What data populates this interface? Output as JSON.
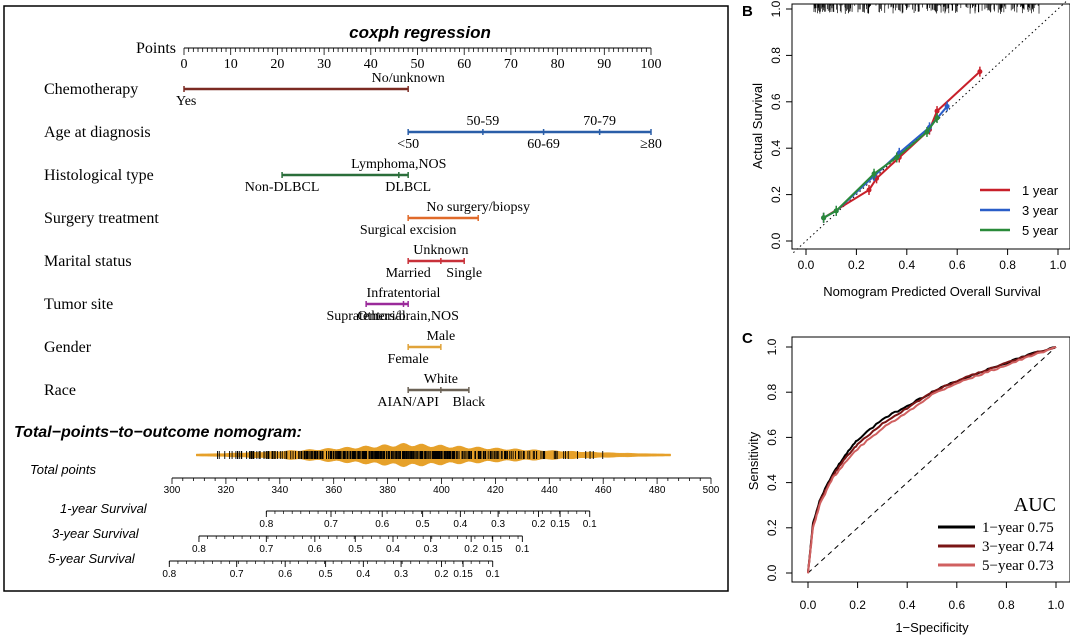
{
  "panels": {
    "a": "A",
    "b": "B",
    "c": "C"
  },
  "colors": {
    "chemo": "#7b2a22",
    "age": "#2a5ea8",
    "hist": "#2a6e3a",
    "surgery": "#e06a2a",
    "marital": "#c8313a",
    "tumor": "#9a2a9a",
    "gender": "#e0a33a",
    "race": "#6b6256",
    "density": "#e6a12a",
    "cal1": "#c8202a",
    "cal3": "#2a5ec8",
    "cal5": "#2a8a3a",
    "roc1": "#000000",
    "roc3": "#7a1515",
    "roc5": "#d06060"
  },
  "chart_data": [
    {
      "type": "nomogram",
      "panel": "A",
      "title": "coxph regression",
      "points_label": "Points",
      "points_ticks": [
        0,
        10,
        20,
        30,
        40,
        50,
        60,
        70,
        80,
        90,
        100
      ],
      "variables": [
        {
          "name": "Chemotherapy",
          "color_key": "chemo",
          "range": [
            0,
            48
          ],
          "levels": [
            {
              "label": "Yes",
              "points": 0,
              "pos": "below"
            },
            {
              "label": "No/unknown",
              "points": 48,
              "pos": "above"
            }
          ]
        },
        {
          "name": "Age at diagnosis",
          "color_key": "age",
          "range": [
            48,
            100
          ],
          "levels": [
            {
              "label": "<50",
              "points": 48,
              "pos": "below"
            },
            {
              "label": "50-59",
              "points": 64,
              "pos": "above"
            },
            {
              "label": "60-69",
              "points": 77,
              "pos": "below"
            },
            {
              "label": "70-79",
              "points": 89,
              "pos": "above"
            },
            {
              "label": "≥80",
              "points": 100,
              "pos": "below"
            }
          ]
        },
        {
          "name": "Histological type",
          "color_key": "hist",
          "range": [
            21,
            48
          ],
          "levels": [
            {
              "label": "Non-DLBCL",
              "points": 21,
              "pos": "below"
            },
            {
              "label": "Lymphoma,NOS",
              "points": 46,
              "pos": "above"
            },
            {
              "label": "DLBCL",
              "points": 48,
              "pos": "below"
            }
          ]
        },
        {
          "name": "Surgery treatment",
          "color_key": "surgery",
          "range": [
            48,
            63
          ],
          "levels": [
            {
              "label": "Surgical excision",
              "points": 48,
              "pos": "below"
            },
            {
              "label": "No surgery/biopsy",
              "points": 63,
              "pos": "above"
            }
          ]
        },
        {
          "name": "Marital status",
          "color_key": "marital",
          "range": [
            48,
            60
          ],
          "levels": [
            {
              "label": "Married",
              "points": 48,
              "pos": "below"
            },
            {
              "label": "Unknown",
              "points": 55,
              "pos": "above"
            },
            {
              "label": "Single",
              "points": 60,
              "pos": "below"
            }
          ]
        },
        {
          "name": "Tumor site",
          "color_key": "tumor",
          "range": [
            39,
            48
          ],
          "levels": [
            {
              "label": "Supratentorial",
              "points": 39,
              "pos": "below"
            },
            {
              "label": "Infratentorial",
              "points": 47,
              "pos": "above"
            },
            {
              "label": "Others/brain,NOS",
              "points": 48,
              "pos": "below"
            }
          ]
        },
        {
          "name": "Gender",
          "color_key": "gender",
          "range": [
            48,
            55
          ],
          "levels": [
            {
              "label": "Female",
              "points": 48,
              "pos": "below"
            },
            {
              "label": "Male",
              "points": 55,
              "pos": "above"
            }
          ]
        },
        {
          "name": "Race",
          "color_key": "race",
          "range": [
            48,
            61
          ],
          "levels": [
            {
              "label": "AIAN/API",
              "points": 48,
              "pos": "below"
            },
            {
              "label": "White",
              "points": 55,
              "pos": "above"
            },
            {
              "label": "Black",
              "points": 61,
              "pos": "below"
            }
          ]
        }
      ],
      "outcome_title": "Total−points−to−outcome nomogram:",
      "total_points": {
        "label": "Total points",
        "ticks": [
          300,
          320,
          340,
          360,
          380,
          400,
          420,
          440,
          460,
          480,
          500
        ],
        "density_range": [
          309,
          485
        ],
        "density_peak": 387
      },
      "survival_axes": [
        {
          "label": "1-year Survival",
          "ticks": [
            {
              "label": "0.8",
              "points": 335
            },
            {
              "label": "0.7",
              "points": 359
            },
            {
              "label": "0.6",
              "points": 378
            },
            {
              "label": "0.5",
              "points": 393
            },
            {
              "label": "0.4",
              "points": 407
            },
            {
              "label": "0.3",
              "points": 421
            },
            {
              "label": "0.2",
              "points": 436
            },
            {
              "label": "0.15",
              "points": 444
            },
            {
              "label": "0.1",
              "points": 455
            }
          ]
        },
        {
          "label": "3-year Survival",
          "ticks": [
            {
              "label": "0.8",
              "points": 310
            },
            {
              "label": "0.7",
              "points": 335
            },
            {
              "label": "0.6",
              "points": 353
            },
            {
              "label": "0.5",
              "points": 368
            },
            {
              "label": "0.4",
              "points": 382
            },
            {
              "label": "0.3",
              "points": 396
            },
            {
              "label": "0.2",
              "points": 411
            },
            {
              "label": "0.15",
              "points": 419
            },
            {
              "label": "0.1",
              "points": 430
            }
          ]
        },
        {
          "label": "5-year Survival",
          "ticks": [
            {
              "label": "0.8",
              "points": 299
            },
            {
              "label": "0.7",
              "points": 324
            },
            {
              "label": "0.6",
              "points": 342
            },
            {
              "label": "0.5",
              "points": 357
            },
            {
              "label": "0.4",
              "points": 371
            },
            {
              "label": "0.3",
              "points": 385
            },
            {
              "label": "0.2",
              "points": 400
            },
            {
              "label": "0.15",
              "points": 408
            },
            {
              "label": "0.1",
              "points": 419
            }
          ]
        }
      ]
    },
    {
      "type": "line",
      "panel": "B",
      "subtype": "calibration",
      "xlabel": "Nomogram Predicted Overall Survival",
      "ylabel": "Actual Survival",
      "xlim": [
        0,
        1
      ],
      "ylim": [
        0,
        1
      ],
      "ticks": [
        "0.0",
        "0.2",
        "0.4",
        "0.6",
        "0.8",
        "1.0"
      ],
      "legend_position": "bottom-right",
      "series": [
        {
          "name": "1 year",
          "color_key": "cal1",
          "x": [
            0.07,
            0.25,
            0.28,
            0.37,
            0.49,
            0.52,
            0.69
          ],
          "y": [
            0.1,
            0.22,
            0.27,
            0.36,
            0.48,
            0.56,
            0.73
          ]
        },
        {
          "name": "3 year",
          "color_key": "cal3",
          "x": [
            0.07,
            0.12,
            0.27,
            0.37,
            0.49,
            0.56
          ],
          "y": [
            0.1,
            0.13,
            0.28,
            0.38,
            0.49,
            0.58
          ]
        },
        {
          "name": "5 year",
          "color_key": "cal5",
          "x": [
            0.07,
            0.12,
            0.27,
            0.36,
            0.48,
            0.52
          ],
          "y": [
            0.1,
            0.13,
            0.29,
            0.36,
            0.47,
            0.53
          ]
        }
      ]
    },
    {
      "type": "line",
      "panel": "C",
      "subtype": "roc",
      "xlabel": "1−Specificity",
      "ylabel": "Sensitivity",
      "xlim": [
        0,
        1
      ],
      "ylim": [
        0,
        1
      ],
      "ticks": [
        "0.0",
        "0.2",
        "0.4",
        "0.6",
        "0.8",
        "1.0"
      ],
      "legend_title": "AUC",
      "legend_position": "bottom-right",
      "series": [
        {
          "name": "1−year 0.75",
          "color_key": "roc1",
          "auc": 0.75,
          "x": [
            0,
            0.02,
            0.05,
            0.1,
            0.15,
            0.2,
            0.3,
            0.4,
            0.5,
            0.6,
            0.7,
            0.8,
            0.9,
            1.0
          ],
          "y": [
            0,
            0.22,
            0.33,
            0.44,
            0.52,
            0.59,
            0.68,
            0.74,
            0.8,
            0.85,
            0.89,
            0.93,
            0.97,
            1.0
          ]
        },
        {
          "name": "3−year 0.74",
          "color_key": "roc3",
          "auc": 0.74,
          "x": [
            0,
            0.02,
            0.05,
            0.1,
            0.15,
            0.2,
            0.3,
            0.4,
            0.5,
            0.6,
            0.7,
            0.8,
            0.9,
            1.0
          ],
          "y": [
            0,
            0.21,
            0.32,
            0.43,
            0.51,
            0.57,
            0.66,
            0.73,
            0.8,
            0.85,
            0.89,
            0.93,
            0.97,
            1.0
          ]
        },
        {
          "name": "5−year 0.73",
          "color_key": "roc5",
          "auc": 0.73,
          "x": [
            0,
            0.02,
            0.05,
            0.1,
            0.15,
            0.2,
            0.3,
            0.4,
            0.5,
            0.6,
            0.7,
            0.8,
            0.9,
            1.0
          ],
          "y": [
            0,
            0.2,
            0.31,
            0.42,
            0.49,
            0.55,
            0.64,
            0.71,
            0.79,
            0.84,
            0.88,
            0.92,
            0.96,
            1.0
          ]
        }
      ]
    }
  ]
}
